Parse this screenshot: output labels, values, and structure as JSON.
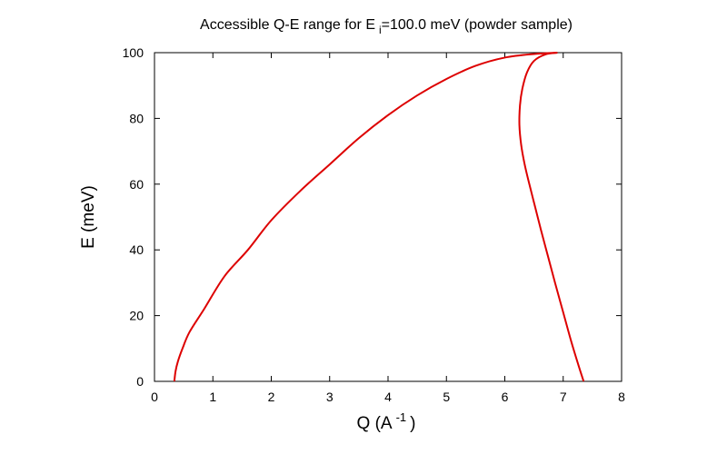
{
  "chart_data": {
    "type": "line",
    "title": {
      "prefix": "Accessible Q-E range for E",
      "sub": "i",
      "suffix": "=100.0 meV (powder sample)"
    },
    "xlabel": {
      "main": "Q (A",
      "sup": "-1",
      "end": ")"
    },
    "ylabel": "E (meV)",
    "xlim": [
      0,
      8
    ],
    "ylim": [
      0,
      100
    ],
    "x_ticks": [
      "0",
      "1",
      "2",
      "3",
      "4",
      "5",
      "6",
      "7",
      "8"
    ],
    "y_ticks": [
      "0",
      "20",
      "40",
      "60",
      "80",
      "100"
    ],
    "grid": false,
    "legend": "none",
    "line_color": "#dd0000",
    "series": [
      {
        "points": [
          [
            0.34,
            0
          ],
          [
            0.36,
            3
          ],
          [
            0.4,
            6
          ],
          [
            0.48,
            10
          ],
          [
            0.6,
            15
          ],
          [
            0.85,
            22
          ],
          [
            1.2,
            32
          ],
          [
            1.6,
            40
          ],
          [
            2.0,
            49
          ],
          [
            2.5,
            58
          ],
          [
            3.0,
            66
          ],
          [
            3.5,
            74
          ],
          [
            4.0,
            81
          ],
          [
            4.5,
            87
          ],
          [
            5.0,
            92
          ],
          [
            5.5,
            96
          ],
          [
            6.0,
            98.5
          ],
          [
            6.5,
            99.6
          ],
          [
            6.9,
            100
          ]
        ]
      },
      {
        "points": [
          [
            6.9,
            100
          ],
          [
            6.7,
            99.5
          ],
          [
            6.5,
            97.5
          ],
          [
            6.38,
            94
          ],
          [
            6.3,
            89
          ],
          [
            6.26,
            84
          ],
          [
            6.25,
            78
          ],
          [
            6.28,
            72
          ],
          [
            6.34,
            66
          ],
          [
            6.42,
            60
          ],
          [
            6.52,
            53
          ],
          [
            6.62,
            46
          ],
          [
            6.74,
            38
          ],
          [
            6.86,
            30
          ],
          [
            7.0,
            21
          ],
          [
            7.14,
            12
          ],
          [
            7.26,
            5
          ],
          [
            7.35,
            0
          ]
        ]
      }
    ]
  }
}
